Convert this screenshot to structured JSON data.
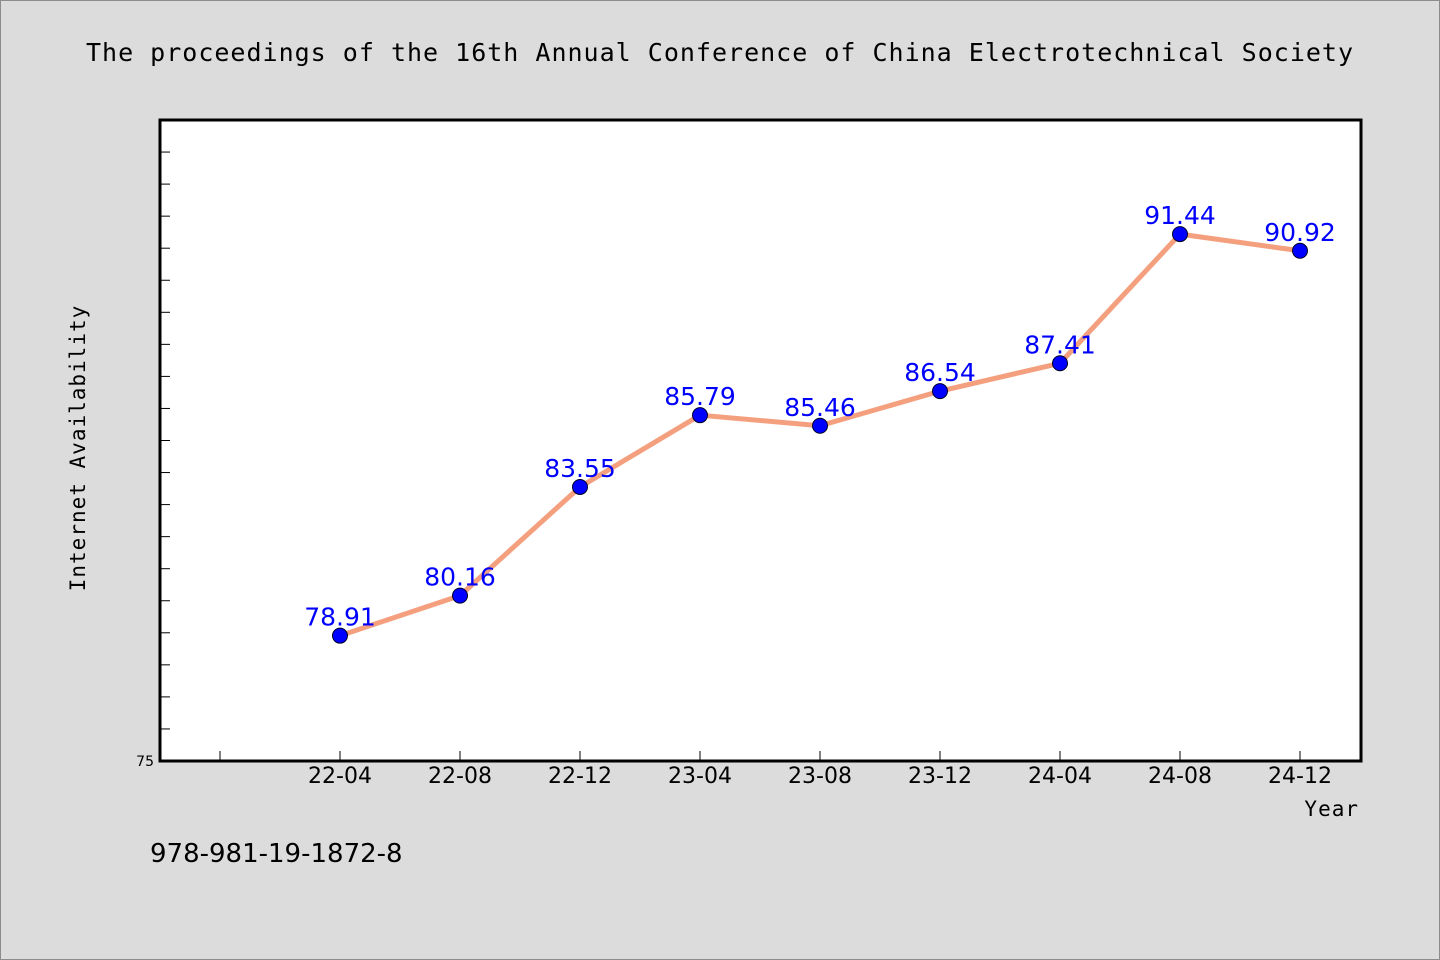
{
  "figure": {
    "title": "The proceedings of the 16th Annual Conference of China Electrotechnical Society",
    "footnote": "978-981-19-1872-8"
  },
  "colors": {
    "background": "#dcdcdc",
    "plot_background": "#ffffff",
    "line": "#f4a07e",
    "marker": "#0000ff",
    "data_label": "#0000ff"
  },
  "chart_data": {
    "type": "line",
    "title": "The proceedings of the 16th Annual Conference of China Electrotechnical Society",
    "xlabel": "Year",
    "ylabel": "Internet Availability",
    "categories": [
      "22-04",
      "22-08",
      "22-12",
      "23-04",
      "23-08",
      "23-12",
      "24-04",
      "24-08",
      "24-12"
    ],
    "values": [
      78.91,
      80.16,
      83.55,
      85.79,
      85.46,
      86.54,
      87.41,
      91.44,
      90.92
    ],
    "data_labels": [
      "78.91",
      "80.16",
      "83.55",
      "85.79",
      "85.46",
      "86.54",
      "87.41",
      "91.44",
      "90.92"
    ],
    "ylim": [
      75,
      95
    ],
    "y_tick_labels": [
      "75"
    ],
    "grid": false,
    "legend": "none"
  }
}
